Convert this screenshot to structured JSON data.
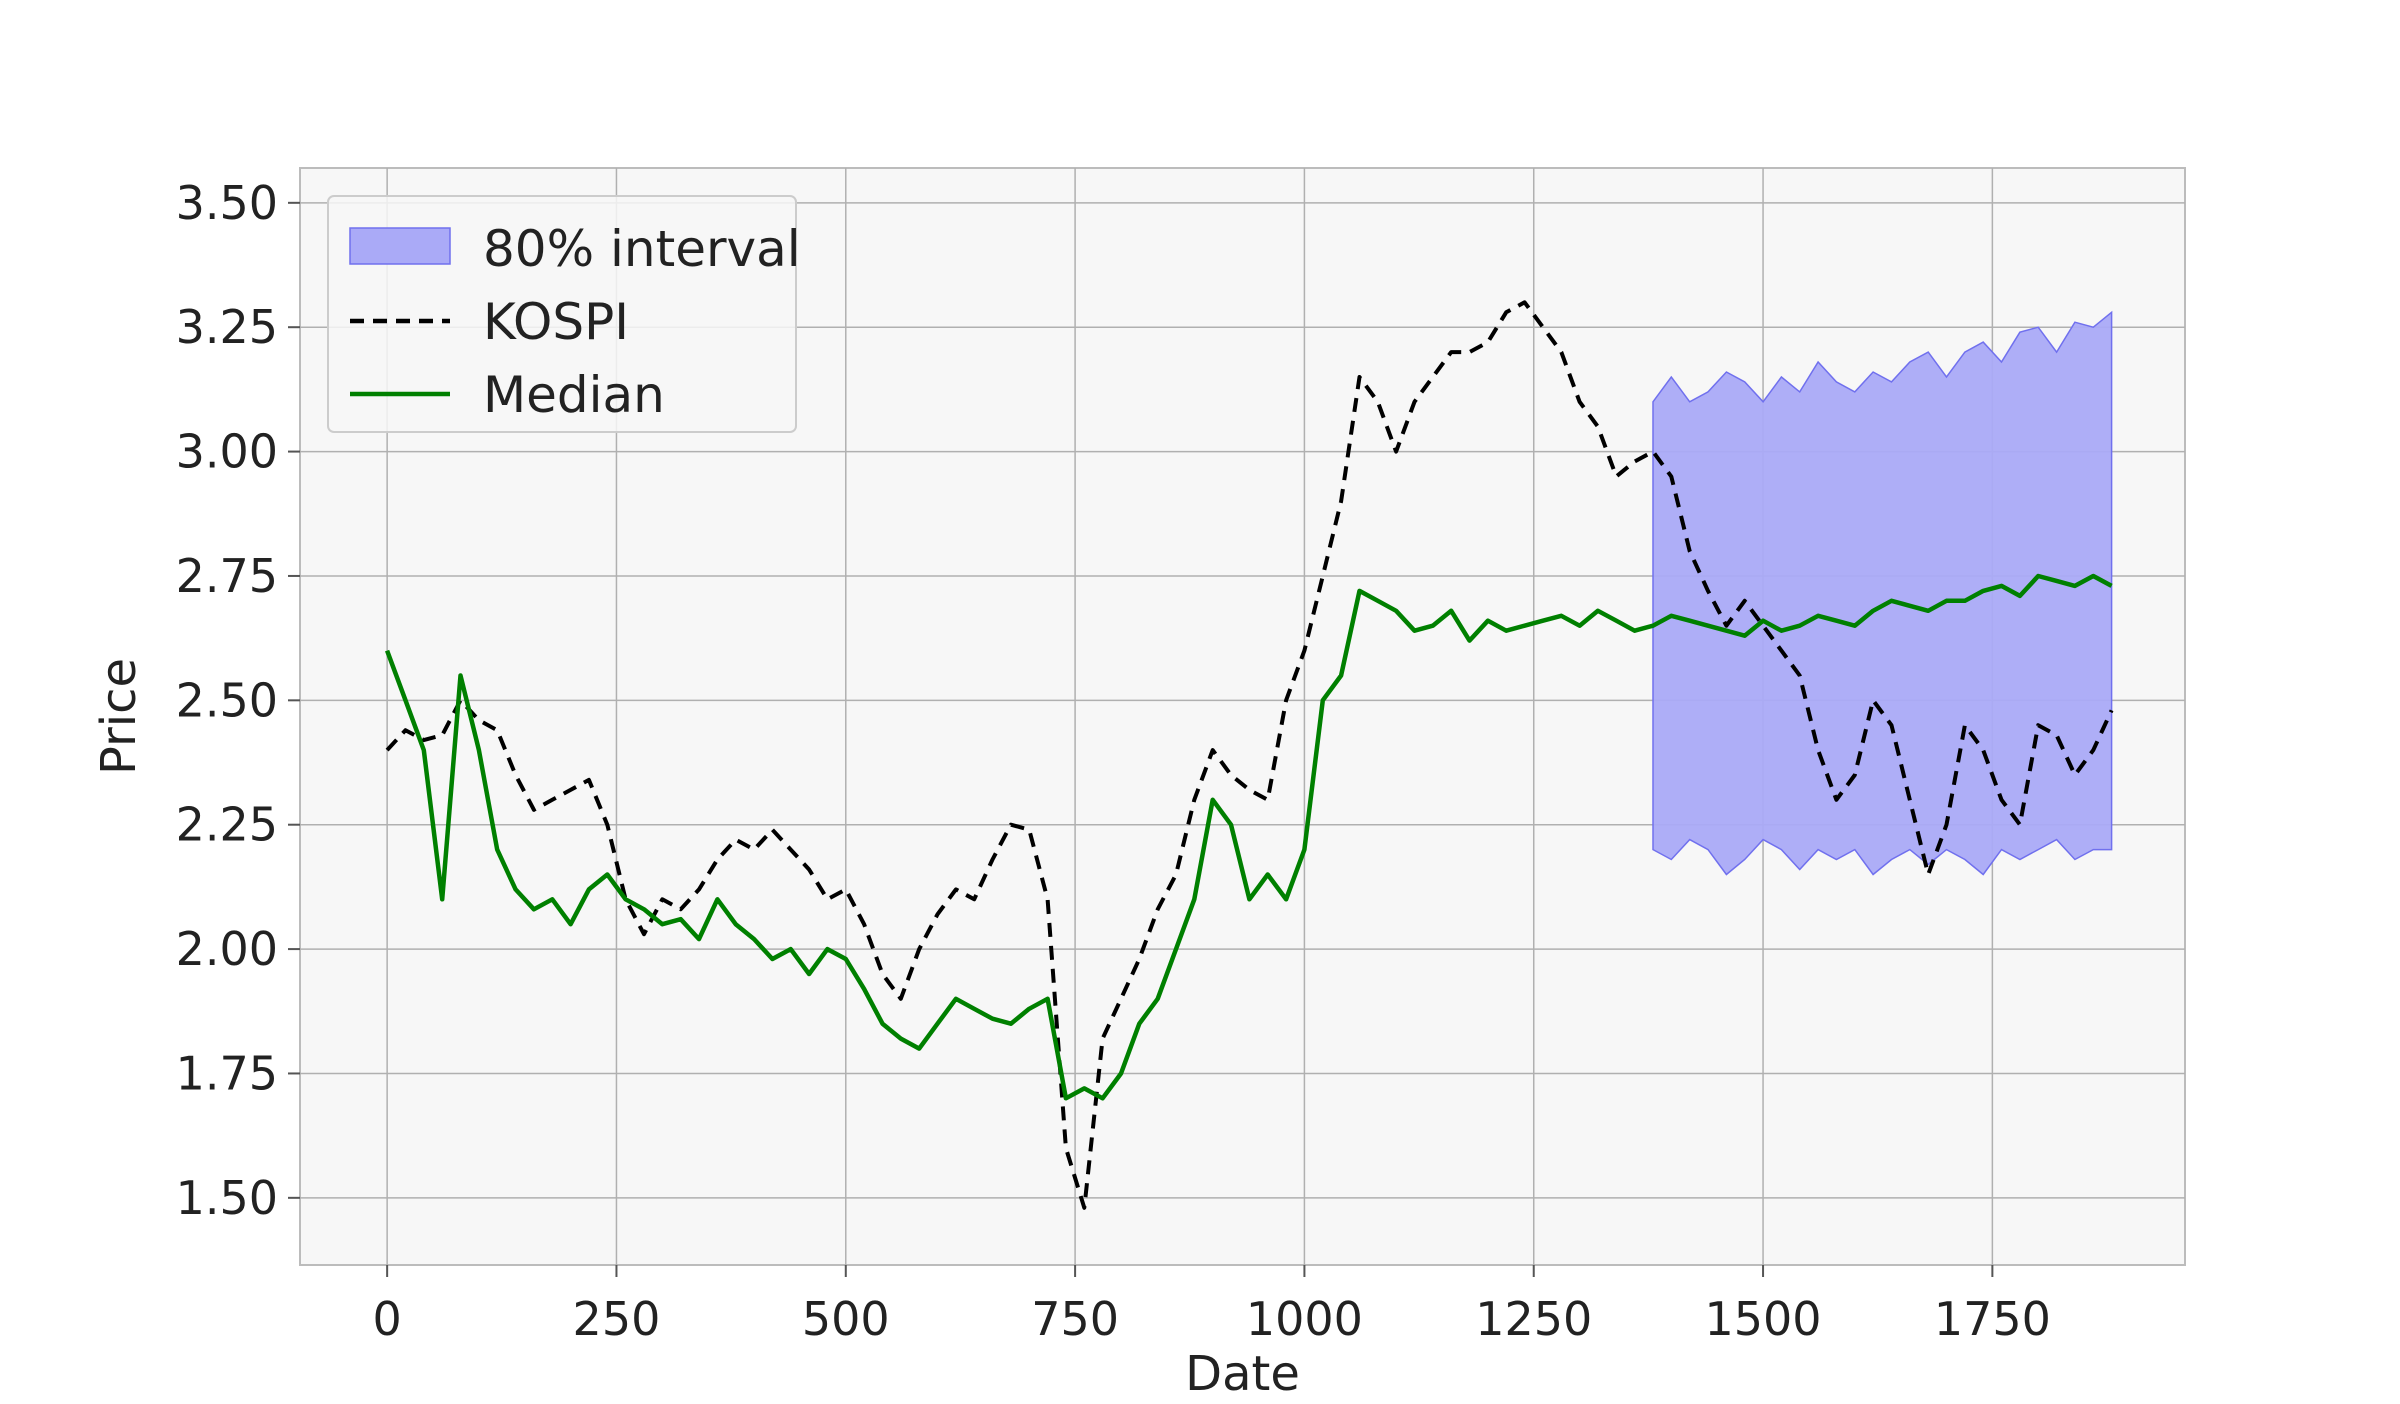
{
  "chart_data": {
    "type": "line",
    "title": "",
    "xlabel": "Date",
    "ylabel": "Price",
    "xlim": [
      -95,
      1960
    ],
    "ylim": [
      1.365,
      3.57
    ],
    "x_ticks": [
      0,
      250,
      500,
      750,
      1000,
      1250,
      1500,
      1750
    ],
    "x_tick_labels": [
      "0",
      "250",
      "500",
      "750",
      "1000",
      "1250",
      "1500",
      "1750"
    ],
    "y_ticks": [
      1.5,
      1.75,
      2.0,
      2.25,
      2.5,
      2.75,
      3.0,
      3.25,
      3.5
    ],
    "y_tick_labels": [
      "1.50",
      "1.75",
      "2.00",
      "2.25",
      "2.50",
      "2.75",
      "3.00",
      "3.25",
      "3.50"
    ],
    "grid": true,
    "legend_position": "top-left",
    "colors": {
      "background": "#f7f7f7",
      "grid": "#b0b0b0",
      "kospi": "#000000",
      "median": "#008000",
      "interval_fill": "#aaaaf7",
      "interval_edge": "#7070ee"
    },
    "legend": [
      {
        "key": "interval",
        "label": "80% interval"
      },
      {
        "key": "kospi",
        "label": "KOSPI"
      },
      {
        "key": "median",
        "label": "Median"
      }
    ],
    "series": [
      {
        "name": "KOSPI",
        "style": "dashed",
        "x": [
          0,
          20,
          40,
          60,
          80,
          100,
          120,
          140,
          160,
          180,
          200,
          220,
          240,
          260,
          280,
          300,
          320,
          340,
          360,
          380,
          400,
          420,
          440,
          460,
          480,
          500,
          520,
          540,
          560,
          580,
          600,
          620,
          640,
          660,
          680,
          700,
          720,
          740,
          760,
          780,
          800,
          820,
          840,
          860,
          880,
          900,
          920,
          940,
          960,
          980,
          1000,
          1020,
          1040,
          1060,
          1080,
          1100,
          1120,
          1140,
          1160,
          1180,
          1200,
          1220,
          1240,
          1260,
          1280,
          1300,
          1320,
          1340,
          1360,
          1380,
          1400,
          1420,
          1440,
          1460,
          1480,
          1500,
          1520,
          1540,
          1560,
          1580,
          1600,
          1620,
          1640,
          1660,
          1680,
          1700,
          1720,
          1740,
          1760,
          1780,
          1800,
          1820,
          1840,
          1860,
          1880
        ],
        "y": [
          2.4,
          2.44,
          2.42,
          2.43,
          2.5,
          2.46,
          2.44,
          2.35,
          2.28,
          2.3,
          2.32,
          2.34,
          2.25,
          2.1,
          2.03,
          2.1,
          2.08,
          2.12,
          2.18,
          2.22,
          2.2,
          2.24,
          2.2,
          2.16,
          2.1,
          2.12,
          2.05,
          1.95,
          1.9,
          2.0,
          2.07,
          2.12,
          2.1,
          2.18,
          2.25,
          2.24,
          2.1,
          1.6,
          1.48,
          1.82,
          1.9,
          1.98,
          2.08,
          2.15,
          2.3,
          2.4,
          2.35,
          2.32,
          2.3,
          2.5,
          2.6,
          2.75,
          2.9,
          3.15,
          3.1,
          3.0,
          3.1,
          3.15,
          3.2,
          3.2,
          3.22,
          3.28,
          3.3,
          3.25,
          3.2,
          3.1,
          3.05,
          2.95,
          2.98,
          3.0,
          2.95,
          2.8,
          2.72,
          2.65,
          2.7,
          2.65,
          2.6,
          2.55,
          2.4,
          2.3,
          2.35,
          2.5,
          2.45,
          2.3,
          2.15,
          2.25,
          2.45,
          2.4,
          2.3,
          2.25,
          2.45,
          2.43,
          2.35,
          2.4,
          2.48
        ]
      },
      {
        "name": "Median",
        "style": "solid",
        "x": [
          0,
          20,
          40,
          60,
          80,
          100,
          120,
          140,
          160,
          180,
          200,
          220,
          240,
          260,
          280,
          300,
          320,
          340,
          360,
          380,
          400,
          420,
          440,
          460,
          480,
          500,
          520,
          540,
          560,
          580,
          600,
          620,
          640,
          660,
          680,
          700,
          720,
          740,
          760,
          780,
          800,
          820,
          840,
          860,
          880,
          900,
          920,
          940,
          960,
          980,
          1000,
          1020,
          1040,
          1060,
          1080,
          1100,
          1120,
          1140,
          1160,
          1180,
          1200,
          1220,
          1240,
          1260,
          1280,
          1300,
          1320,
          1340,
          1360,
          1380,
          1400,
          1420,
          1440,
          1460,
          1480,
          1500,
          1520,
          1540,
          1560,
          1580,
          1600,
          1620,
          1640,
          1660,
          1680,
          1700,
          1720,
          1740,
          1760,
          1780,
          1800,
          1820,
          1840,
          1860,
          1880
        ],
        "y": [
          2.6,
          2.5,
          2.4,
          2.1,
          2.55,
          2.4,
          2.2,
          2.12,
          2.08,
          2.1,
          2.05,
          2.12,
          2.15,
          2.1,
          2.08,
          2.05,
          2.06,
          2.02,
          2.1,
          2.05,
          2.02,
          1.98,
          2.0,
          1.95,
          2.0,
          1.98,
          1.92,
          1.85,
          1.82,
          1.8,
          1.85,
          1.9,
          1.88,
          1.86,
          1.85,
          1.88,
          1.9,
          1.7,
          1.72,
          1.7,
          1.75,
          1.85,
          1.9,
          2.0,
          2.1,
          2.3,
          2.25,
          2.1,
          2.15,
          2.1,
          2.2,
          2.5,
          2.55,
          2.72,
          2.7,
          2.68,
          2.64,
          2.65,
          2.68,
          2.62,
          2.66,
          2.64,
          2.65,
          2.66,
          2.67,
          2.65,
          2.68,
          2.66,
          2.64,
          2.65,
          2.67,
          2.66,
          2.65,
          2.64,
          2.63,
          2.66,
          2.64,
          2.65,
          2.67,
          2.66,
          2.65,
          2.68,
          2.7,
          2.69,
          2.68,
          2.7,
          2.7,
          2.72,
          2.73,
          2.71,
          2.75,
          2.74,
          2.73,
          2.75,
          2.73
        ]
      }
    ],
    "interval": {
      "name": "80% interval",
      "x": [
        1380,
        1400,
        1420,
        1440,
        1460,
        1480,
        1500,
        1520,
        1540,
        1560,
        1580,
        1600,
        1620,
        1640,
        1660,
        1680,
        1700,
        1720,
        1740,
        1760,
        1780,
        1800,
        1820,
        1840,
        1860,
        1880
      ],
      "upper": [
        3.1,
        3.15,
        3.1,
        3.12,
        3.16,
        3.14,
        3.1,
        3.15,
        3.12,
        3.18,
        3.14,
        3.12,
        3.16,
        3.14,
        3.18,
        3.2,
        3.15,
        3.2,
        3.22,
        3.18,
        3.24,
        3.25,
        3.2,
        3.26,
        3.25,
        3.28
      ],
      "lower": [
        2.2,
        2.18,
        2.22,
        2.2,
        2.15,
        2.18,
        2.22,
        2.2,
        2.16,
        2.2,
        2.18,
        2.2,
        2.15,
        2.18,
        2.2,
        2.17,
        2.2,
        2.18,
        2.15,
        2.2,
        2.18,
        2.2,
        2.22,
        2.18,
        2.2,
        2.2
      ]
    }
  }
}
